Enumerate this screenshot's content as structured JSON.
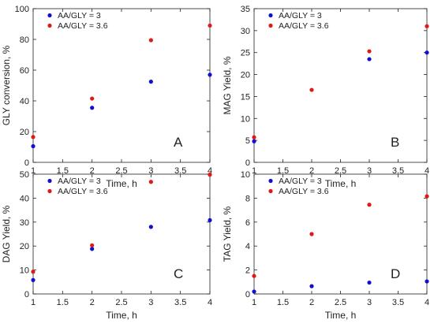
{
  "chart_data": [
    {
      "type": "scatter",
      "panel_label": "A",
      "xlabel": "Time, h",
      "ylabel": "GLY conversion, %",
      "xlim": [
        1,
        4
      ],
      "ylim": [
        0,
        100
      ],
      "xticks": [
        "1",
        "1.5",
        "2",
        "2.5",
        "3",
        "3.5",
        "4"
      ],
      "yticks": [
        "0",
        "20",
        "40",
        "60",
        "80",
        "100"
      ],
      "grid": false,
      "legend_position": "top-left",
      "series": [
        {
          "name": "AA/GLY = 3",
          "color": "#1010d0",
          "x": [
            1,
            2,
            3,
            4
          ],
          "y": [
            10.5,
            35.5,
            52.5,
            57
          ]
        },
        {
          "name": "AA/GLY = 3.6",
          "color": "#e01818",
          "x": [
            1,
            2,
            3,
            4
          ],
          "y": [
            16.5,
            41.5,
            79.5,
            89
          ]
        }
      ]
    },
    {
      "type": "scatter",
      "panel_label": "B",
      "xlabel": "Time, h",
      "ylabel": "MAG Yield, %",
      "xlim": [
        1,
        4
      ],
      "ylim": [
        0,
        35
      ],
      "xticks": [
        "1",
        "1.5",
        "2",
        "2.5",
        "3",
        "3.5",
        "4"
      ],
      "yticks": [
        "0",
        "5",
        "10",
        "15",
        "20",
        "25",
        "30",
        "35"
      ],
      "grid": false,
      "legend_position": "top-left",
      "series": [
        {
          "name": "AA/GLY = 3",
          "color": "#1010d0",
          "x": [
            1,
            3,
            4
          ],
          "y": [
            4.8,
            23.5,
            25
          ]
        },
        {
          "name": "AA/GLY = 3.6",
          "color": "#e01818",
          "x": [
            1,
            2,
            3,
            4
          ],
          "y": [
            5.7,
            16.5,
            25.3,
            31
          ]
        }
      ]
    },
    {
      "type": "scatter",
      "panel_label": "C",
      "xlabel": "Time, h",
      "ylabel": "DAG Yield, %",
      "xlim": [
        1,
        4
      ],
      "ylim": [
        0,
        50
      ],
      "xticks": [
        "1",
        "1.5",
        "2",
        "2.5",
        "3",
        "3.5",
        "4"
      ],
      "yticks": [
        "0",
        "10",
        "20",
        "30",
        "40",
        "50"
      ],
      "grid": false,
      "legend_position": "top-left",
      "series": [
        {
          "name": "AA/GLY = 3",
          "color": "#1010d0",
          "x": [
            1,
            2,
            3,
            4
          ],
          "y": [
            5.8,
            18.8,
            28,
            30.8
          ]
        },
        {
          "name": "AA/GLY = 3.6",
          "color": "#e01818",
          "x": [
            1,
            2,
            3,
            4
          ],
          "y": [
            9.3,
            20.3,
            46.8,
            49.8
          ]
        }
      ]
    },
    {
      "type": "scatter",
      "panel_label": "D",
      "xlabel": "Time, h",
      "ylabel": "TAG Yield, %",
      "xlim": [
        1,
        4
      ],
      "ylim": [
        0,
        10
      ],
      "xticks": [
        "1",
        "1.5",
        "2",
        "2.5",
        "3",
        "3.5",
        "4"
      ],
      "yticks": [
        "0",
        "2",
        "4",
        "6",
        "8",
        "10"
      ],
      "grid": false,
      "legend_position": "top-left",
      "series": [
        {
          "name": "AA/GLY = 3",
          "color": "#1010d0",
          "x": [
            1,
            2,
            3,
            4
          ],
          "y": [
            0.2,
            0.65,
            0.95,
            1.05
          ]
        },
        {
          "name": "AA/GLY = 3.6",
          "color": "#e01818",
          "x": [
            1,
            2,
            3,
            4
          ],
          "y": [
            1.5,
            5,
            7.45,
            8.15
          ]
        }
      ]
    }
  ]
}
